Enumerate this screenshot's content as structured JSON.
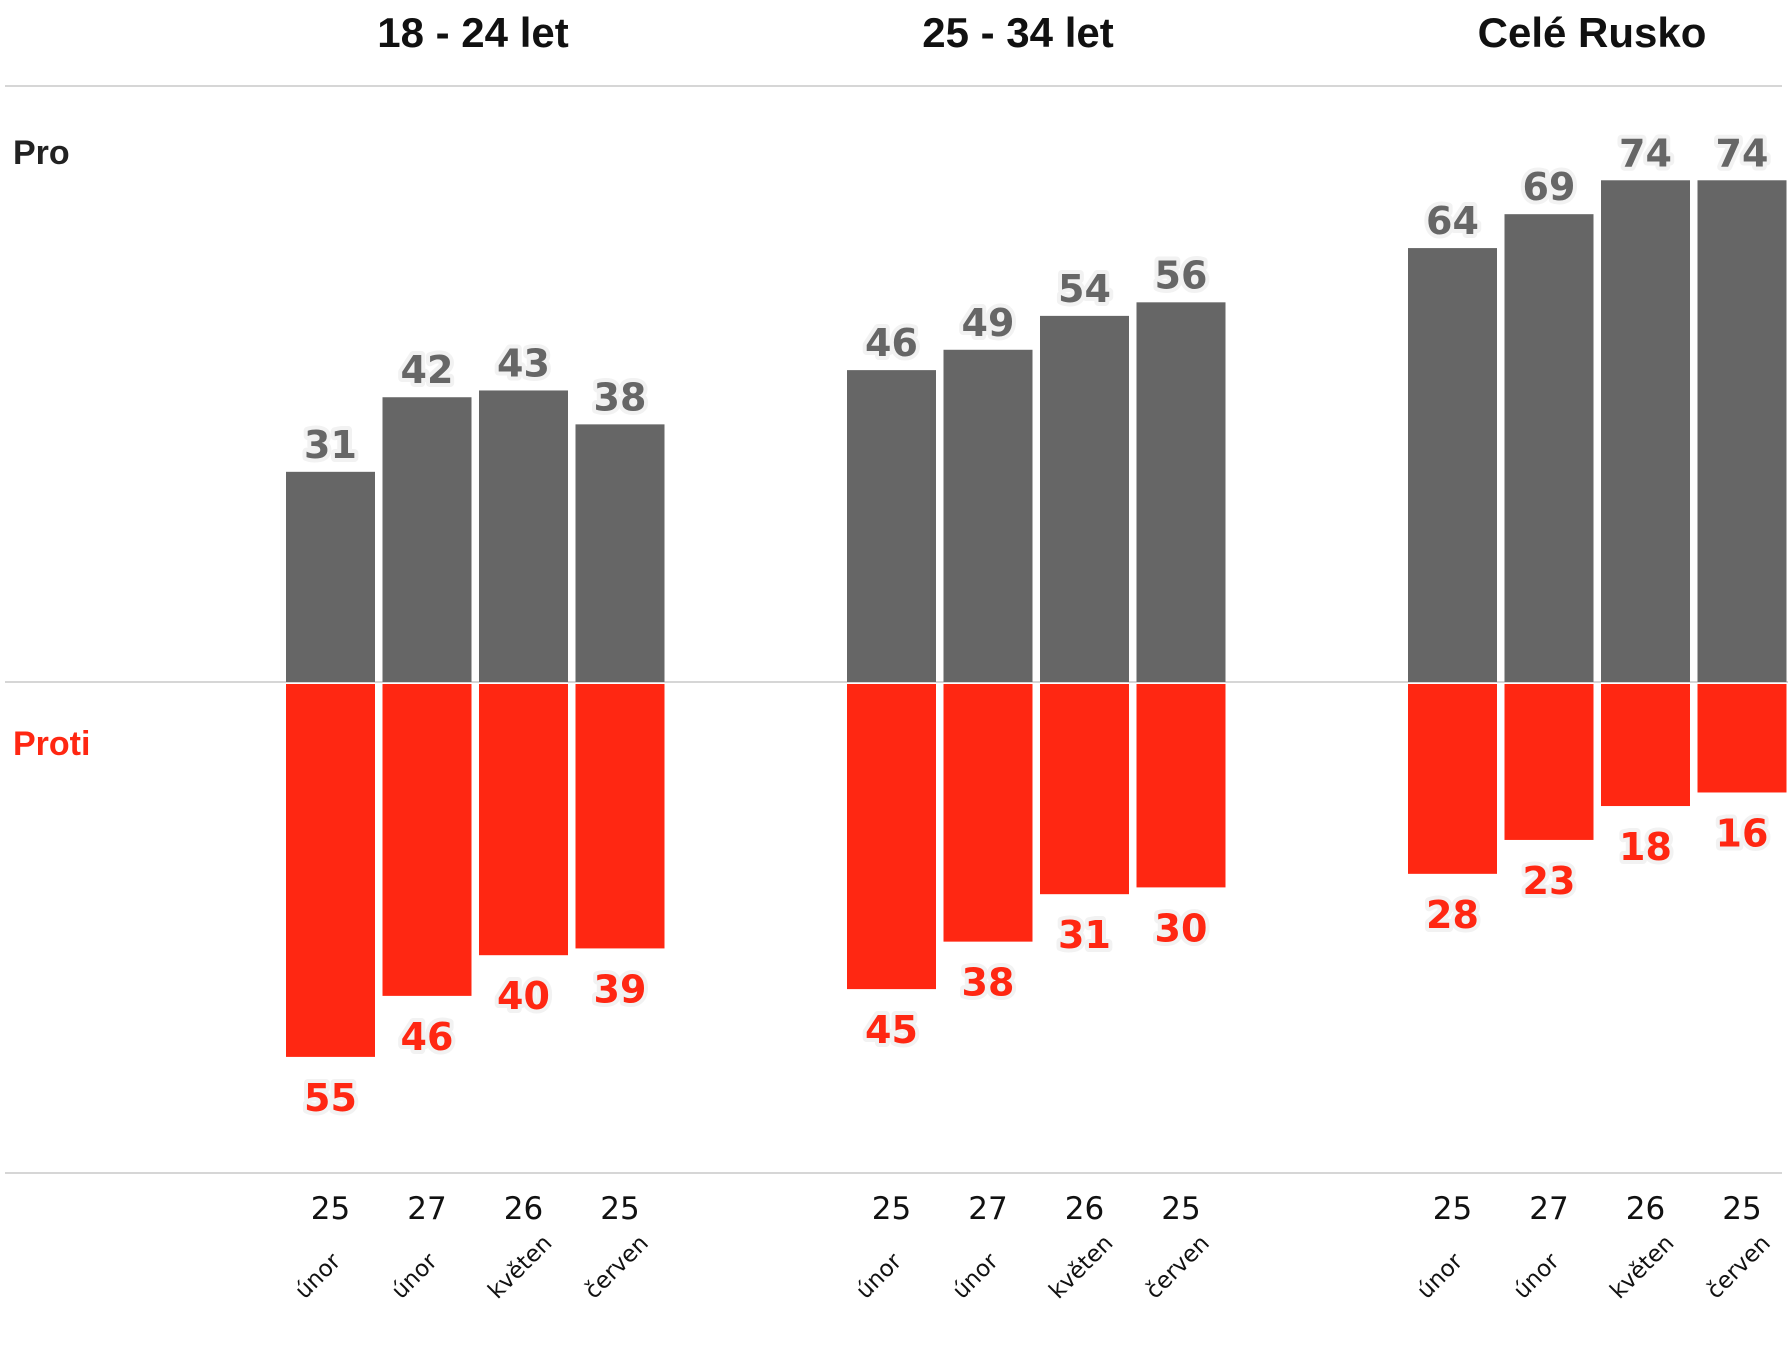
{
  "chart_data": {
    "type": "bar",
    "legend": {
      "pro": "Pro",
      "proti": "Proti"
    },
    "colors": {
      "pro": "#666666",
      "proti": "#ff2712",
      "pro_text": "#666666",
      "proti_text": "#ff2712"
    },
    "categories": [
      {
        "day": "25",
        "month": "únor"
      },
      {
        "day": "27",
        "month": "únor"
      },
      {
        "day": "26",
        "month": "květen"
      },
      {
        "day": "25",
        "month": "červen"
      }
    ],
    "groups": [
      {
        "title": "18 - 24 let",
        "pro": [
          31,
          42,
          43,
          38
        ],
        "proti": [
          55,
          46,
          40,
          39
        ]
      },
      {
        "title": "25 - 34 let",
        "pro": [
          46,
          49,
          54,
          56
        ],
        "proti": [
          45,
          38,
          31,
          30
        ]
      },
      {
        "title": "Celé Rusko",
        "pro": [
          64,
          69,
          74,
          74
        ],
        "proti": [
          28,
          23,
          18,
          16
        ]
      }
    ]
  }
}
